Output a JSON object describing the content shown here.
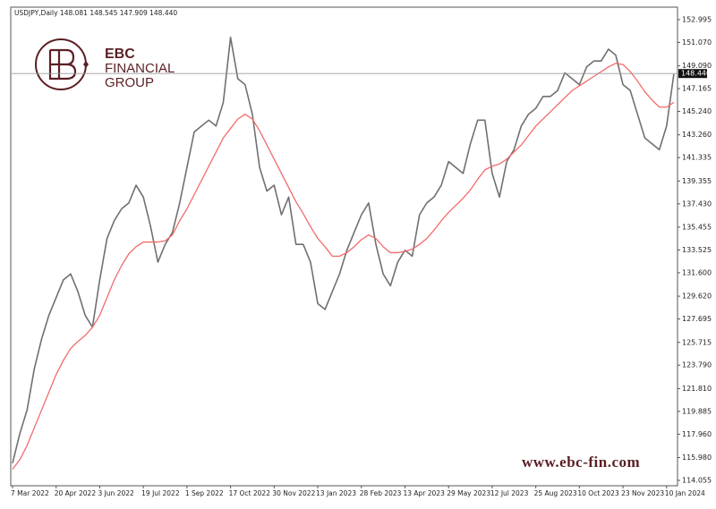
{
  "chart_data": {
    "type": "line",
    "subtitle": "USDJPY,Daily  148.081 148.545 147.909 148.440",
    "logo": {
      "lines": [
        "EBC",
        "FINANCIAL",
        "GROUP"
      ]
    },
    "watermark": "www.ebc-fin.com",
    "categories": [
      "7 Mar 2022",
      null,
      null,
      null,
      null,
      null,
      "20 Apr 2022",
      null,
      null,
      null,
      null,
      null,
      "3 Jun 2022",
      null,
      null,
      null,
      null,
      null,
      "19 Jul 2022",
      null,
      null,
      null,
      null,
      null,
      "1 Sep 2022",
      null,
      null,
      null,
      null,
      null,
      "17 Oct 2022",
      null,
      null,
      null,
      null,
      null,
      "30 Nov 2022",
      null,
      null,
      null,
      null,
      null,
      "13 Jan 2023",
      null,
      null,
      null,
      null,
      null,
      "28 Feb 2023",
      null,
      null,
      null,
      null,
      null,
      "13 Apr 2023",
      null,
      null,
      null,
      null,
      null,
      "29 May 2023",
      null,
      null,
      null,
      null,
      null,
      "12 Jul 2023",
      null,
      null,
      null,
      null,
      null,
      "25 Aug 2023",
      null,
      null,
      null,
      null,
      null,
      "10 Oct 2023",
      null,
      null,
      null,
      null,
      null,
      "23 Nov 2023",
      null,
      null,
      null,
      null,
      null,
      "10 Jan 2024",
      null
    ],
    "series": [
      {
        "color": "#707070",
        "values": [
          115.5,
          118,
          120,
          123.5,
          126,
          128,
          129.5,
          131,
          131.5,
          130,
          128,
          127,
          131,
          134.5,
          136,
          137,
          137.5,
          139,
          138,
          135.5,
          132.5,
          134,
          135,
          137.5,
          140.5,
          143.5,
          144,
          144.5,
          144,
          146,
          151.5,
          148,
          147.5,
          145,
          140.5,
          138.5,
          139,
          136.5,
          138,
          134,
          134,
          132.5,
          129,
          128.5,
          130,
          131.5,
          133.5,
          135,
          136.5,
          137.5,
          134,
          131.5,
          130.5,
          132.5,
          133.5,
          133,
          136.5,
          137.5,
          138,
          139,
          141,
          140.5,
          140,
          142.5,
          144.5,
          144.5,
          140,
          138,
          141,
          142,
          144,
          145,
          145.5,
          146.5,
          146.5,
          147,
          148.5,
          148,
          147.5,
          149,
          149.5,
          149.5,
          150.5,
          150,
          147.5,
          147,
          145,
          143,
          142.5,
          142,
          144,
          148.4
        ]
      },
      {
        "color": "#f26b6b",
        "values": [
          115,
          115.8,
          117,
          118.5,
          120,
          121.5,
          123,
          124.2,
          125.2,
          125.8,
          126.3,
          127,
          128,
          129.5,
          131,
          132.2,
          133.2,
          133.8,
          134.2,
          134.2,
          134.2,
          134.3,
          134.8,
          136,
          137,
          138.2,
          139.4,
          140.6,
          141.8,
          143,
          143.8,
          144.6,
          145,
          144.6,
          143.6,
          142.4,
          141.2,
          140,
          138.8,
          137.6,
          136.6,
          135.5,
          134.5,
          133.8,
          133,
          133,
          133.3,
          133.8,
          134.4,
          134.8,
          134.5,
          133.8,
          133.3,
          133.3,
          133.4,
          133.6,
          134,
          134.5,
          135.2,
          136,
          136.7,
          137.3,
          137.9,
          138.6,
          139.5,
          140.3,
          140.6,
          140.8,
          141.2,
          141.8,
          142.4,
          143.2,
          144,
          144.6,
          145.2,
          145.8,
          146.4,
          147,
          147.4,
          147.8,
          148.2,
          148.6,
          149,
          149.3,
          149.2,
          148.6,
          147.8,
          146.9,
          146.2,
          145.6,
          145.6,
          146
        ]
      }
    ],
    "ylim": [
      113.6,
      154.05
    ],
    "yticks": [
      152.995,
      {
        "value": 151.07,
        "label": "151.070"
      },
      {
        "value": 149.09,
        "label": "149.090"
      },
      147.165,
      {
        "value": 145.24,
        "label": "145.240"
      },
      {
        "value": 143.26,
        "label": "143.260"
      },
      141.335,
      139.355,
      {
        "value": 137.43,
        "label": "137.430"
      },
      135.455,
      133.525,
      {
        "value": 131.6,
        "label": "131.600"
      },
      {
        "value": 129.62,
        "label": "129.620"
      },
      127.695,
      125.715,
      {
        "value": 123.79,
        "label": "123.790"
      },
      {
        "value": 121.81,
        "label": "121.810"
      },
      119.885,
      {
        "value": 117.96,
        "label": "117.960"
      },
      {
        "value": 115.98,
        "label": "115.980"
      },
      114.055
    ],
    "current_price": {
      "value": 148.44,
      "label": "148.440"
    },
    "grid": false
  }
}
